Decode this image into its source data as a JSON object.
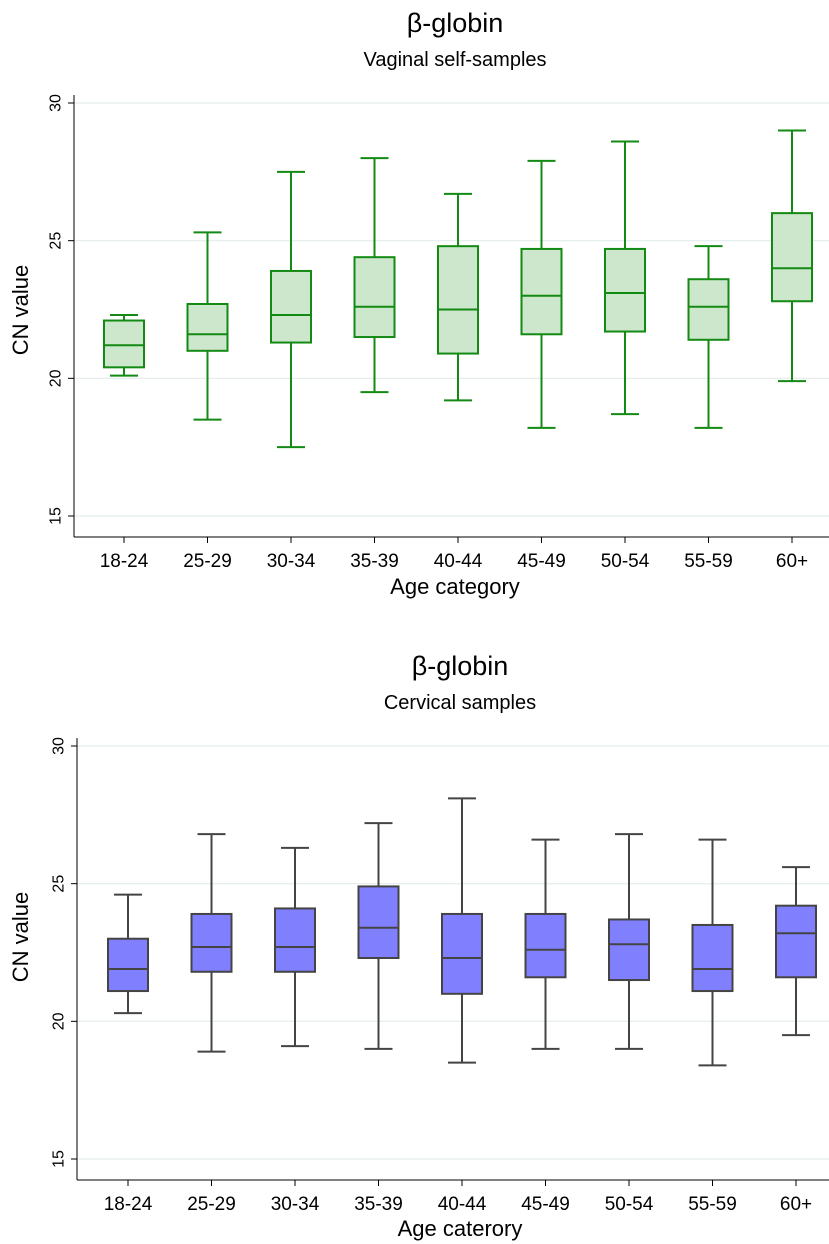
{
  "chart_data": [
    {
      "type": "box",
      "title": "β-globin",
      "subtitle": "Vaginal self-samples",
      "xlabel": "Age category",
      "ylabel": "CN value",
      "ylim": [
        15,
        30
      ],
      "yticks": [
        15,
        20,
        25,
        30
      ],
      "grid": true,
      "colors": {
        "box_fill": "#cde7cd",
        "box_stroke": "#138a13"
      },
      "categories": [
        "18-24",
        "25-29",
        "30-34",
        "35-39",
        "40-44",
        "45-49",
        "50-54",
        "55-59",
        "60+"
      ],
      "boxes": [
        {
          "min": 20.1,
          "q1": 20.4,
          "median": 21.2,
          "q3": 22.1,
          "max": 22.3
        },
        {
          "min": 18.5,
          "q1": 21.0,
          "median": 21.6,
          "q3": 22.7,
          "max": 25.3
        },
        {
          "min": 17.5,
          "q1": 21.3,
          "median": 22.3,
          "q3": 23.9,
          "max": 27.5
        },
        {
          "min": 19.5,
          "q1": 21.5,
          "median": 22.6,
          "q3": 24.4,
          "max": 28.0
        },
        {
          "min": 19.2,
          "q1": 20.9,
          "median": 22.5,
          "q3": 24.8,
          "max": 26.7
        },
        {
          "min": 18.2,
          "q1": 21.6,
          "median": 23.0,
          "q3": 24.7,
          "max": 27.9
        },
        {
          "min": 18.7,
          "q1": 21.7,
          "median": 23.1,
          "q3": 24.7,
          "max": 28.6
        },
        {
          "min": 18.2,
          "q1": 21.4,
          "median": 22.6,
          "q3": 23.6,
          "max": 24.8
        },
        {
          "min": 19.9,
          "q1": 22.8,
          "median": 24.0,
          "q3": 26.0,
          "max": 29.0
        }
      ]
    },
    {
      "type": "box",
      "title": "β-globin",
      "subtitle": "Cervical samples",
      "xlabel": "Age caterory",
      "ylabel": "CN value",
      "ylim": [
        15,
        30
      ],
      "yticks": [
        15,
        20,
        25,
        30
      ],
      "grid": true,
      "colors": {
        "box_fill": "#8080ff",
        "box_stroke": "#444444"
      },
      "categories": [
        "18-24",
        "25-29",
        "30-34",
        "35-39",
        "40-44",
        "45-49",
        "50-54",
        "55-59",
        "60+"
      ],
      "boxes": [
        {
          "min": 20.3,
          "q1": 21.1,
          "median": 21.9,
          "q3": 23.0,
          "max": 24.6
        },
        {
          "min": 18.9,
          "q1": 21.8,
          "median": 22.7,
          "q3": 23.9,
          "max": 26.8
        },
        {
          "min": 19.1,
          "q1": 21.8,
          "median": 22.7,
          "q3": 24.1,
          "max": 26.3
        },
        {
          "min": 19.0,
          "q1": 22.3,
          "median": 23.4,
          "q3": 24.9,
          "max": 27.2
        },
        {
          "min": 18.5,
          "q1": 21.0,
          "median": 22.3,
          "q3": 23.9,
          "max": 28.1
        },
        {
          "min": 19.0,
          "q1": 21.6,
          "median": 22.6,
          "q3": 23.9,
          "max": 26.6
        },
        {
          "min": 19.0,
          "q1": 21.5,
          "median": 22.8,
          "q3": 23.7,
          "max": 26.8
        },
        {
          "min": 18.4,
          "q1": 21.1,
          "median": 21.9,
          "q3": 23.5,
          "max": 26.6
        },
        {
          "min": 19.5,
          "q1": 21.6,
          "median": 23.2,
          "q3": 24.2,
          "max": 25.6
        }
      ]
    }
  ]
}
